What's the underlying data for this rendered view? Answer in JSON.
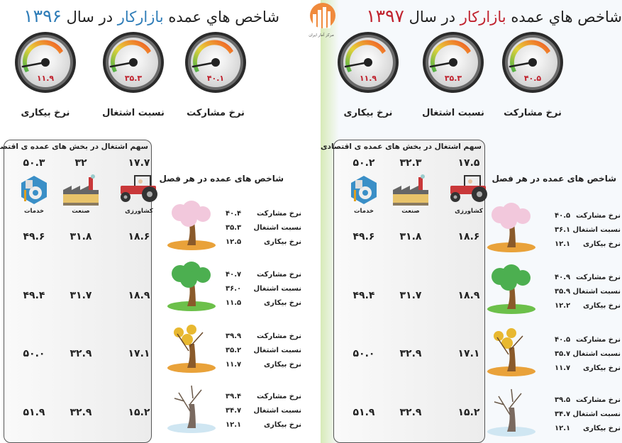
{
  "logo": {
    "text": "مرکز آمار ایران",
    "color": "#f08a3c"
  },
  "colors": {
    "blue_accent": "#2f7db8",
    "red_accent": "#c0222e",
    "gauge_value": "#c0222e"
  },
  "panels": [
    {
      "id": "1396",
      "title": {
        "prefix": "شاخص هاي عمده ",
        "highlight": "بازارکار",
        "middle": " در سال ",
        "year": "۱۳۹۶"
      },
      "gauges": [
        {
          "label": "نرخ بیکاری",
          "value": "۱۱.۹"
        },
        {
          "label": "نسبت اشتغال",
          "value": "۳۵.۳"
        },
        {
          "label": "نرخ مشارکت",
          "value": "۴۰.۱"
        }
      ],
      "sector_table": {
        "title": "سهم اشتغال در بخش های عمده ی اقتصادی",
        "sectors": [
          {
            "label": "خدمات",
            "icon": "services-gear-icon",
            "annual": "۵۰.۳"
          },
          {
            "label": "صنعت",
            "icon": "factory-icon",
            "annual": "۳۲"
          },
          {
            "label": "کشاورزی",
            "icon": "tractor-icon",
            "annual": "۱۷.۷"
          }
        ],
        "seasonal_rows": [
          [
            "۴۹.۶",
            "۳۱.۸",
            "۱۸.۶"
          ],
          [
            "۴۹.۴",
            "۳۱.۷",
            "۱۸.۹"
          ],
          [
            "۵۰.۰",
            "۳۲.۹",
            "۱۷.۱"
          ],
          [
            "۵۱.۹",
            "۳۲.۹",
            "۱۵.۲"
          ]
        ]
      },
      "seasons": {
        "title": "شاخص های عمده در هر فصل",
        "items": [
          {
            "season": "spring",
            "rows": [
              {
                "label": "نرخ مشارکت",
                "value": "۴۰.۴"
              },
              {
                "label": "نسبت اشتغال",
                "value": "۳۵.۳"
              },
              {
                "label": "نرخ بیکاری",
                "value": "۱۲.۵"
              }
            ]
          },
          {
            "season": "summer",
            "rows": [
              {
                "label": "نرخ مشارکت",
                "value": "۴۰.۷"
              },
              {
                "label": "نسبت اشتغال",
                "value": "۳۶.۰"
              },
              {
                "label": "نرخ بیکاری",
                "value": "۱۱.۵"
              }
            ]
          },
          {
            "season": "autumn",
            "rows": [
              {
                "label": "نرخ مشارکت",
                "value": "۳۹.۹"
              },
              {
                "label": "نسبت اشتغال",
                "value": "۳۵.۲"
              },
              {
                "label": "نرخ بیکاری",
                "value": "۱۱.۷"
              }
            ]
          },
          {
            "season": "winter",
            "rows": [
              {
                "label": "نرخ مشارکت",
                "value": "۳۹.۴"
              },
              {
                "label": "نسبت اشتغال",
                "value": "۳۴.۷"
              },
              {
                "label": "نرخ بیکاری",
                "value": "۱۲.۱"
              }
            ]
          }
        ]
      }
    },
    {
      "id": "1397",
      "title": {
        "prefix": "شاخص هاي عمده ",
        "highlight": "بازارکار",
        "middle": " در سال ",
        "year": "۱۳۹۷"
      },
      "gauges": [
        {
          "label": "نرخ بیکاری",
          "value": "۱۱.۹"
        },
        {
          "label": "نسبت اشتغال",
          "value": "۳۵.۳"
        },
        {
          "label": "نرخ مشارکت",
          "value": "۴۰.۵"
        }
      ],
      "sector_table": {
        "title": "سهم اشتغال در بخش های عمده ی اقتصادی",
        "sectors": [
          {
            "label": "خدمات",
            "icon": "services-gear-icon",
            "annual": "۵۰.۲"
          },
          {
            "label": "صنعت",
            "icon": "factory-icon",
            "annual": "۳۲.۳"
          },
          {
            "label": "کشاورزی",
            "icon": "tractor-icon",
            "annual": "۱۷.۵"
          }
        ],
        "seasonal_rows": [
          [
            "۴۹.۶",
            "۳۱.۸",
            "۱۸.۶"
          ],
          [
            "۴۹.۴",
            "۳۱.۷",
            "۱۸.۹"
          ],
          [
            "۵۰.۰",
            "۳۲.۹",
            "۱۷.۱"
          ],
          [
            "۵۱.۹",
            "۳۲.۹",
            "۱۵.۲"
          ]
        ]
      },
      "seasons": {
        "title": "شاخص های عمده در هر فصل",
        "items": [
          {
            "season": "spring",
            "rows": [
              {
                "label": "نرخ مشارکت",
                "value": "۴۰.۵"
              },
              {
                "label": "نسبت اشتغال",
                "value": "۳۶.۱"
              },
              {
                "label": "نرخ بیکاری",
                "value": "۱۲.۱"
              }
            ]
          },
          {
            "season": "summer",
            "rows": [
              {
                "label": "نرخ مشارکت",
                "value": "۴۰.۹"
              },
              {
                "label": "نسبت اشتغال",
                "value": "۳۵.۹"
              },
              {
                "label": "نرخ بیکاری",
                "value": "۱۲.۲"
              }
            ]
          },
          {
            "season": "autumn",
            "rows": [
              {
                "label": "نرخ مشارکت",
                "value": "۴۰.۵"
              },
              {
                "label": "نسبت اشتغال",
                "value": "۳۵.۷"
              },
              {
                "label": "نرخ بیکاری",
                "value": "۱۱.۷"
              }
            ]
          },
          {
            "season": "winter",
            "rows": [
              {
                "label": "نرخ مشارکت",
                "value": "۳۹.۵"
              },
              {
                "label": "نسبت اشتغال",
                "value": "۳۴.۷"
              },
              {
                "label": "نرخ بیکاری",
                "value": "۱۲.۱"
              }
            ]
          }
        ]
      }
    }
  ]
}
